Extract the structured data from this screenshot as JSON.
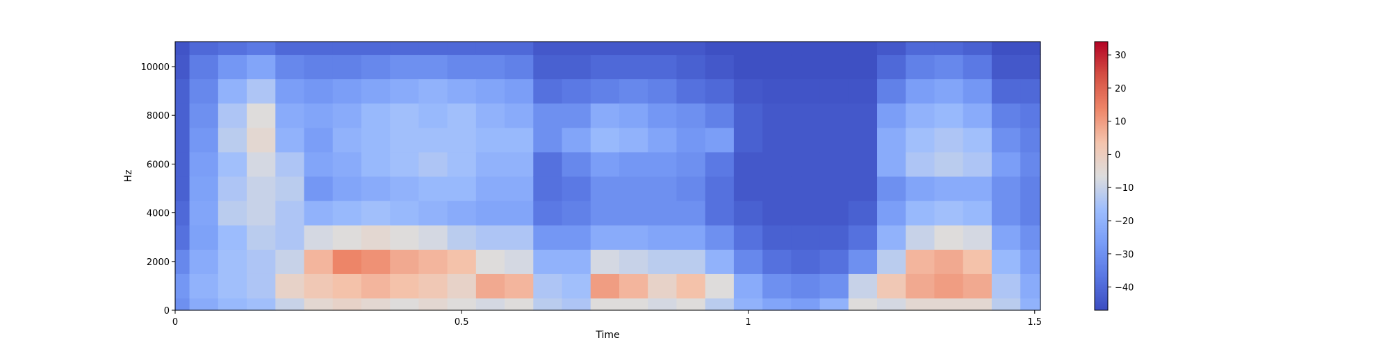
{
  "chart_data": [
    {
      "type": "heatmap",
      "subtype": "spectrogram",
      "xlabel": "Time",
      "ylabel": "Hz",
      "xlim": [
        0,
        1.51
      ],
      "ylim": [
        0,
        11025
      ],
      "xticks": [
        0,
        0.5,
        1,
        1.5
      ],
      "xtick_labels": [
        "0",
        "0.5",
        "1",
        "1.5"
      ],
      "yticks": [
        0,
        2000,
        4000,
        6000,
        8000,
        10000
      ],
      "ytick_labels": [
        "0",
        "2000",
        "4000",
        "6000",
        "8000",
        "10000"
      ],
      "colormap": "coolwarm",
      "value_range": [
        -47,
        34
      ],
      "colorbar": {
        "ticks": [
          -40,
          -30,
          -20,
          -10,
          0,
          10,
          20,
          30
        ],
        "tick_labels": [
          "−40",
          "−30",
          "−20",
          "−10",
          "0",
          "10",
          "20",
          "30"
        ]
      },
      "time_frames": [
        0.0,
        0.05,
        0.1,
        0.15,
        0.2,
        0.25,
        0.3,
        0.35,
        0.4,
        0.45,
        0.5,
        0.55,
        0.6,
        0.65,
        0.7,
        0.75,
        0.8,
        0.85,
        0.9,
        0.95,
        1.0,
        1.05,
        1.1,
        1.15,
        1.2,
        1.25,
        1.3,
        1.35,
        1.4,
        1.45,
        1.5
      ],
      "frequency_bins_hz": [
        0,
        1000,
        2000,
        3000,
        4000,
        5000,
        6000,
        7000,
        8000,
        9000,
        10000,
        11000
      ],
      "values_db": [
        [
          -30,
          -28,
          -32,
          -38,
          -40,
          -42,
          -42,
          -42,
          -42,
          -42,
          -44,
          -45
        ],
        [
          -22,
          -20,
          -22,
          -25,
          -24,
          -25,
          -26,
          -28,
          -30,
          -32,
          -35,
          -40
        ],
        [
          -18,
          -16,
          -16,
          -17,
          -12,
          -14,
          -16,
          -12,
          -14,
          -20,
          -28,
          -38
        ],
        [
          -16,
          -14,
          -14,
          -12,
          -10,
          -10,
          -8,
          -4,
          -6,
          -14,
          -24,
          -36
        ],
        [
          -10,
          -2,
          -10,
          -14,
          -14,
          -12,
          -14,
          -20,
          -22,
          -26,
          -32,
          -40
        ],
        [
          -4,
          2,
          6,
          -8,
          -20,
          -28,
          -24,
          -26,
          -24,
          -28,
          -34,
          -40
        ],
        [
          -2,
          4,
          14,
          -6,
          -18,
          -24,
          -22,
          -20,
          -22,
          -26,
          -34,
          -40
        ],
        [
          -4,
          6,
          12,
          -4,
          -16,
          -22,
          -18,
          -18,
          -18,
          -24,
          -32,
          -40
        ],
        [
          -6,
          4,
          8,
          -6,
          -18,
          -20,
          -16,
          -16,
          -16,
          -22,
          -30,
          -40
        ],
        [
          -4,
          2,
          6,
          -8,
          -20,
          -18,
          -14,
          -16,
          -18,
          -20,
          -30,
          -40
        ],
        [
          -6,
          -2,
          4,
          -12,
          -22,
          -18,
          -16,
          -16,
          -16,
          -22,
          -32,
          -40
        ],
        [
          -8,
          8,
          -6,
          -14,
          -24,
          -22,
          -20,
          -18,
          -20,
          -24,
          -32,
          -40
        ],
        [
          -6,
          6,
          -8,
          -14,
          -24,
          -22,
          -20,
          -18,
          -22,
          -26,
          -34,
          -40
        ],
        [
          -12,
          -14,
          -20,
          -28,
          -36,
          -38,
          -38,
          -30,
          -30,
          -38,
          -42,
          -44
        ],
        [
          -14,
          -16,
          -20,
          -28,
          -34,
          -36,
          -32,
          -24,
          -30,
          -36,
          -42,
          -44
        ],
        [
          -6,
          10,
          -8,
          -22,
          -30,
          -30,
          -26,
          -18,
          -22,
          -34,
          -40,
          -44
        ],
        [
          -6,
          6,
          -10,
          -22,
          -30,
          -30,
          -28,
          -20,
          -24,
          -32,
          -40,
          -44
        ],
        [
          -8,
          -2,
          -12,
          -24,
          -30,
          -30,
          -28,
          -24,
          -28,
          -34,
          -40,
          -44
        ],
        [
          -6,
          4,
          -12,
          -24,
          -30,
          -32,
          -30,
          -28,
          -30,
          -38,
          -42,
          -44
        ],
        [
          -12,
          -6,
          -20,
          -30,
          -38,
          -38,
          -36,
          -26,
          -34,
          -40,
          -44,
          -46
        ],
        [
          -20,
          -22,
          -32,
          -38,
          -42,
          -44,
          -44,
          -42,
          -42,
          -44,
          -46,
          -46
        ],
        [
          -24,
          -30,
          -38,
          -42,
          -44,
          -44,
          -44,
          -44,
          -44,
          -45,
          -46,
          -46
        ],
        [
          -26,
          -32,
          -40,
          -42,
          -44,
          -44,
          -44,
          -44,
          -44,
          -45,
          -46,
          -46
        ],
        [
          -20,
          -30,
          -38,
          -42,
          -44,
          -44,
          -44,
          -44,
          -44,
          -45,
          -46,
          -46
        ],
        [
          -6,
          -10,
          -30,
          -38,
          -42,
          -44,
          -44,
          -44,
          -44,
          -45,
          -46,
          -46
        ],
        [
          -8,
          2,
          -12,
          -20,
          -26,
          -30,
          -22,
          -22,
          -26,
          -34,
          -40,
          -44
        ],
        [
          -4,
          8,
          6,
          -10,
          -18,
          -24,
          -14,
          -16,
          -20,
          -26,
          -34,
          -40
        ],
        [
          -4,
          10,
          8,
          -6,
          -16,
          -22,
          -12,
          -14,
          -18,
          -24,
          -32,
          -40
        ],
        [
          -4,
          8,
          4,
          -8,
          -18,
          -22,
          -14,
          -16,
          -22,
          -28,
          -36,
          -42
        ],
        [
          -12,
          -14,
          -18,
          -24,
          -30,
          -30,
          -26,
          -30,
          -34,
          -40,
          -44,
          -46
        ],
        [
          -20,
          -22,
          -26,
          -30,
          -34,
          -34,
          -32,
          -34,
          -36,
          -40,
          -44,
          -46
        ]
      ]
    }
  ]
}
